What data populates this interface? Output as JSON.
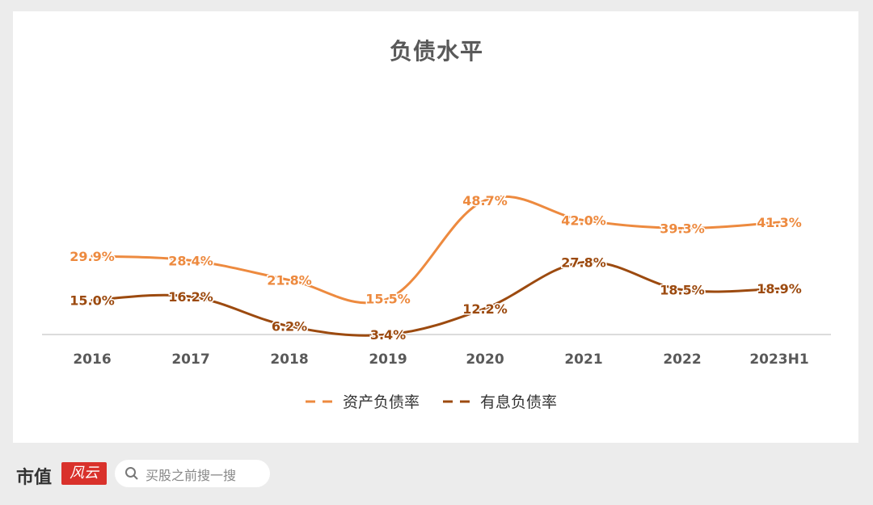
{
  "chart_data": {
    "type": "line",
    "title": "负债水平",
    "categories": [
      "2016",
      "2017",
      "2018",
      "2019",
      "2020",
      "2021",
      "2022",
      "2023H1"
    ],
    "series": [
      {
        "name": "资产负债率",
        "color": "#ed8a3f",
        "values": [
          29.9,
          28.4,
          21.8,
          15.5,
          48.7,
          42.0,
          39.3,
          41.3
        ],
        "labels": [
          "29.9%",
          "28.4%",
          "21.8%",
          "15.5%",
          "48.7%",
          "42.0%",
          "39.3%",
          "41.3%"
        ]
      },
      {
        "name": "有息负债率",
        "color": "#9c4a0f",
        "values": [
          15.0,
          16.2,
          6.2,
          3.4,
          12.2,
          27.8,
          18.5,
          18.9
        ],
        "labels": [
          "15.0%",
          "16.2%",
          "6.2%",
          "3.4%",
          "12.2%",
          "27.8%",
          "18.5%",
          "18.9%"
        ]
      }
    ],
    "legend_position": "bottom",
    "grid": false
  },
  "footer": {
    "brand_text": "市值",
    "brand_logo_text": "风云",
    "search_placeholder": "买股之前搜一搜"
  }
}
